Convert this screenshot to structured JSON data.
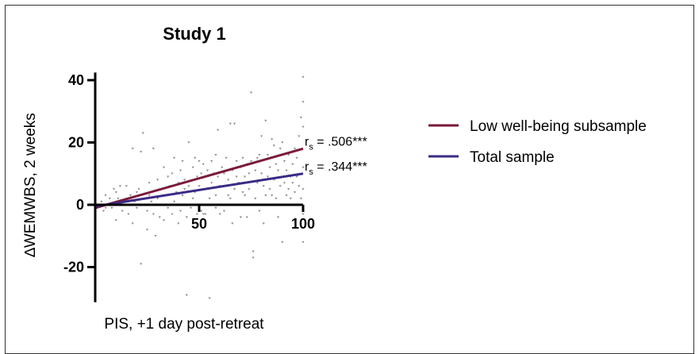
{
  "chart_data": {
    "type": "scatter",
    "title": "Study 1",
    "xlabel": "PIS, +1 day post-retreat",
    "ylabel": "∆WEMWBS, 2 weeks",
    "xlim": [
      0,
      100
    ],
    "ylim": [
      -30,
      45
    ],
    "x_ticks": [
      50,
      100
    ],
    "x_tick_labels": [
      "50",
      "100"
    ],
    "y_ticks": [
      40,
      20,
      0,
      -20
    ],
    "y_tick_labels": [
      "40",
      "20",
      "0",
      "-20"
    ],
    "legend_position": "right",
    "regression_lines": [
      {
        "name": "Low well-being subsample",
        "color": "#7a1a3c",
        "x": [
          0,
          100
        ],
        "y": [
          -1,
          18
        ],
        "annotation": "rₛ = .506***",
        "ann_main": "r",
        "ann_sub": "s",
        "ann_rest": " = .506***"
      },
      {
        "name": "Total sample",
        "color": "#3b2a86",
        "x": [
          0,
          100
        ],
        "y": [
          -0.5,
          10
        ],
        "annotation": "rₛ = .344***",
        "ann_main": "r",
        "ann_sub": "s",
        "ann_rest": " = .344***"
      }
    ],
    "points": [
      [
        0,
        5
      ],
      [
        0,
        -2
      ],
      [
        0,
        2
      ],
      [
        1,
        -1
      ],
      [
        2,
        0
      ],
      [
        3,
        1
      ],
      [
        4,
        -2
      ],
      [
        5,
        3
      ],
      [
        5,
        -1
      ],
      [
        6,
        0
      ],
      [
        7,
        2
      ],
      [
        8,
        -1
      ],
      [
        9,
        5
      ],
      [
        10,
        4
      ],
      [
        10,
        -5
      ],
      [
        11,
        2
      ],
      [
        12,
        6
      ],
      [
        13,
        -2
      ],
      [
        14,
        1
      ],
      [
        15,
        6
      ],
      [
        16,
        -3
      ],
      [
        17,
        3
      ],
      [
        18,
        -6
      ],
      [
        18,
        18
      ],
      [
        19,
        1
      ],
      [
        20,
        4
      ],
      [
        20,
        -1
      ],
      [
        21,
        5
      ],
      [
        22,
        17
      ],
      [
        22,
        -19
      ],
      [
        23,
        23
      ],
      [
        24,
        2
      ],
      [
        25,
        -2
      ],
      [
        25,
        -8
      ],
      [
        26,
        3
      ],
      [
        26,
        7
      ],
      [
        27,
        1
      ],
      [
        28,
        18
      ],
      [
        28,
        -3
      ],
      [
        29,
        -10
      ],
      [
        30,
        8
      ],
      [
        30,
        2
      ],
      [
        31,
        -4
      ],
      [
        32,
        5
      ],
      [
        33,
        12
      ],
      [
        33,
        -5
      ],
      [
        34,
        3
      ],
      [
        35,
        9
      ],
      [
        35,
        -1
      ],
      [
        36,
        6
      ],
      [
        37,
        10
      ],
      [
        37,
        -3
      ],
      [
        38,
        15
      ],
      [
        38,
        1
      ],
      [
        39,
        4
      ],
      [
        40,
        7
      ],
      [
        40,
        -6
      ],
      [
        41,
        11
      ],
      [
        41,
        -2
      ],
      [
        42,
        14
      ],
      [
        42,
        3
      ],
      [
        43,
        5
      ],
      [
        43,
        8
      ],
      [
        44,
        -29
      ],
      [
        44,
        -4
      ],
      [
        45,
        6
      ],
      [
        45,
        20
      ],
      [
        46,
        -1
      ],
      [
        47,
        12
      ],
      [
        47,
        2
      ],
      [
        48,
        15
      ],
      [
        48,
        4
      ],
      [
        49,
        9
      ],
      [
        49,
        -3
      ],
      [
        50,
        6
      ],
      [
        50,
        14
      ],
      [
        51,
        -2
      ],
      [
        51,
        10
      ],
      [
        52,
        -3
      ],
      [
        52,
        13
      ],
      [
        53,
        -3
      ],
      [
        53,
        5
      ],
      [
        54,
        11
      ],
      [
        55,
        -30
      ],
      [
        55,
        2
      ],
      [
        56,
        7
      ],
      [
        56,
        14
      ],
      [
        57,
        10
      ],
      [
        58,
        -1
      ],
      [
        58,
        3
      ],
      [
        58,
        16
      ],
      [
        59,
        24
      ],
      [
        59,
        9
      ],
      [
        60,
        6
      ],
      [
        60,
        -3
      ],
      [
        61,
        12
      ],
      [
        61,
        0
      ],
      [
        62,
        -2
      ],
      [
        62,
        10
      ],
      [
        63,
        6
      ],
      [
        63,
        15
      ],
      [
        64,
        3
      ],
      [
        64,
        8
      ],
      [
        65,
        26
      ],
      [
        65,
        2
      ],
      [
        66,
        11
      ],
      [
        66,
        -6
      ],
      [
        67,
        26
      ],
      [
        67,
        5
      ],
      [
        68,
        9
      ],
      [
        68,
        14
      ],
      [
        69,
        0
      ],
      [
        69,
        7
      ],
      [
        70,
        12
      ],
      [
        70,
        -4
      ],
      [
        71,
        15
      ],
      [
        71,
        4
      ],
      [
        72,
        3
      ],
      [
        72,
        9
      ],
      [
        73,
        13
      ],
      [
        73,
        -4
      ],
      [
        74,
        10
      ],
      [
        74,
        5
      ],
      [
        75,
        36
      ],
      [
        75,
        14
      ],
      [
        76,
        -15
      ],
      [
        76,
        -17
      ],
      [
        77,
        11
      ],
      [
        77,
        2
      ],
      [
        78,
        15
      ],
      [
        78,
        7
      ],
      [
        79,
        16
      ],
      [
        79,
        -2
      ],
      [
        80,
        10
      ],
      [
        80,
        22
      ],
      [
        81,
        6
      ],
      [
        81,
        -6
      ],
      [
        82,
        27
      ],
      [
        82,
        3
      ],
      [
        83,
        16
      ],
      [
        83,
        9
      ],
      [
        84,
        12
      ],
      [
        84,
        5
      ],
      [
        85,
        21
      ],
      [
        85,
        3
      ],
      [
        86,
        19
      ],
      [
        86,
        8
      ],
      [
        87,
        2
      ],
      [
        87,
        13
      ],
      [
        88,
        -4
      ],
      [
        88,
        11
      ],
      [
        89,
        18
      ],
      [
        89,
        6
      ],
      [
        90,
        -12
      ],
      [
        90,
        20
      ],
      [
        91,
        7
      ],
      [
        91,
        14
      ],
      [
        92,
        3
      ],
      [
        92,
        11
      ],
      [
        93,
        5
      ],
      [
        93,
        16
      ],
      [
        94,
        9
      ],
      [
        94,
        2
      ],
      [
        95,
        13
      ],
      [
        95,
        7
      ],
      [
        96,
        4
      ],
      [
        96,
        18
      ],
      [
        97,
        15
      ],
      [
        97,
        9
      ],
      [
        98,
        22
      ],
      [
        98,
        6
      ],
      [
        99,
        2
      ],
      [
        99,
        28
      ],
      [
        100,
        41
      ],
      [
        100,
        33
      ],
      [
        100,
        12
      ],
      [
        100,
        5
      ],
      [
        100,
        -12
      ],
      [
        100,
        25
      ],
      [
        100,
        -3
      ]
    ]
  }
}
